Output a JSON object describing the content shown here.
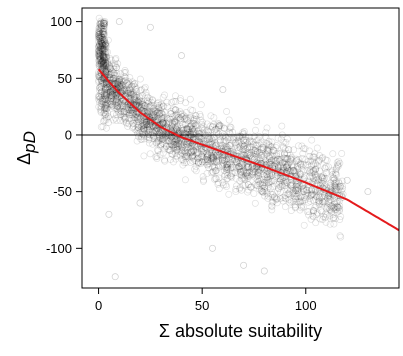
{
  "chart_data": {
    "type": "scatter",
    "title": "",
    "xlabel": "Σ absolute suitability",
    "ylabel_symbol": "Δ",
    "ylabel_subscript": "pD",
    "xlim": [
      -8,
      145
    ],
    "ylim": [
      -135,
      112
    ],
    "xticks": [
      0,
      50,
      100
    ],
    "yticks": [
      100,
      50,
      0,
      -50,
      -100
    ],
    "reference_line_y": 0,
    "grid": false,
    "legend": "none",
    "colors": {
      "points": "#000000",
      "fit": "#e41a1c",
      "axis": "#000000"
    },
    "series": [
      {
        "kind": "points",
        "marker": "open-circle",
        "density_outline": [
          [
            0,
            95
          ],
          [
            5,
            70
          ],
          [
            15,
            48
          ],
          [
            30,
            25
          ],
          [
            50,
            8
          ],
          [
            70,
            -5
          ],
          [
            90,
            -20
          ],
          [
            105,
            -35
          ],
          [
            110,
            -45
          ],
          [
            95,
            -60
          ],
          [
            70,
            -40
          ],
          [
            50,
            -25
          ],
          [
            30,
            -12
          ],
          [
            15,
            -5
          ],
          [
            3,
            20
          ]
        ],
        "outliers": [
          [
            8,
            -125
          ],
          [
            70,
            -115
          ],
          [
            80,
            -120
          ],
          [
            55,
            -100
          ],
          [
            25,
            95
          ],
          [
            40,
            70
          ],
          [
            60,
            40
          ],
          [
            5,
            -70
          ],
          [
            20,
            -60
          ],
          [
            120,
            -40
          ],
          [
            130,
            -50
          ],
          [
            10,
            100
          ]
        ]
      },
      {
        "kind": "fit",
        "x": [
          0,
          5,
          10,
          20,
          30,
          40,
          60,
          80,
          100,
          120,
          145
        ],
        "y": [
          58,
          47,
          37,
          20,
          7,
          -2,
          -15,
          -28,
          -42,
          -57,
          -84
        ]
      }
    ]
  }
}
